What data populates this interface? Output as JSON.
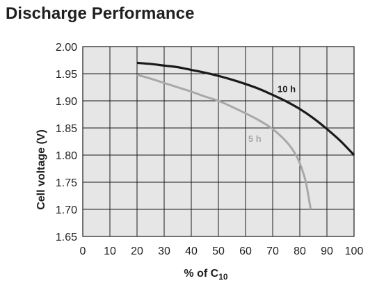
{
  "chart_data": {
    "type": "line",
    "title": "Discharge Performance",
    "xlabel": {
      "main": "% of C",
      "sub": "10"
    },
    "ylabel": "Cell voltage (V)",
    "xlim": [
      0,
      100
    ],
    "ylim": [
      1.65,
      2.0
    ],
    "x_ticks": [
      0,
      10,
      20,
      30,
      40,
      50,
      60,
      70,
      80,
      90,
      100
    ],
    "x_tick_labels": [
      "0",
      "10",
      "20",
      "30",
      "40",
      "50",
      "60",
      "70",
      "80",
      "90",
      "100"
    ],
    "y_ticks": [
      1.65,
      1.7,
      1.75,
      1.8,
      1.85,
      1.9,
      1.95,
      2.0
    ],
    "y_tick_labels": [
      "1.65",
      "1.70",
      "1.75",
      "1.80",
      "1.85",
      "1.90",
      "1.95",
      "2.00"
    ],
    "grid": true,
    "background": "#e6e6e6",
    "series": [
      {
        "name": "10 h",
        "color": "#1a1a1a",
        "x": [
          20,
          25,
          30,
          35,
          40,
          45,
          50,
          55,
          60,
          65,
          70,
          75,
          80,
          85,
          90,
          95,
          100
        ],
        "y": [
          1.97,
          1.968,
          1.965,
          1.962,
          1.957,
          1.952,
          1.946,
          1.939,
          1.931,
          1.922,
          1.911,
          1.899,
          1.885,
          1.868,
          1.848,
          1.826,
          1.8
        ]
      },
      {
        "name": "5 h",
        "color": "#a8a8a8",
        "x": [
          20,
          25,
          30,
          35,
          40,
          45,
          50,
          55,
          60,
          65,
          70,
          75,
          78,
          80,
          82,
          83,
          84
        ],
        "y": [
          1.948,
          1.941,
          1.933,
          1.925,
          1.917,
          1.908,
          1.9,
          1.889,
          1.877,
          1.864,
          1.848,
          1.825,
          1.805,
          1.785,
          1.755,
          1.73,
          1.7
        ]
      }
    ]
  }
}
